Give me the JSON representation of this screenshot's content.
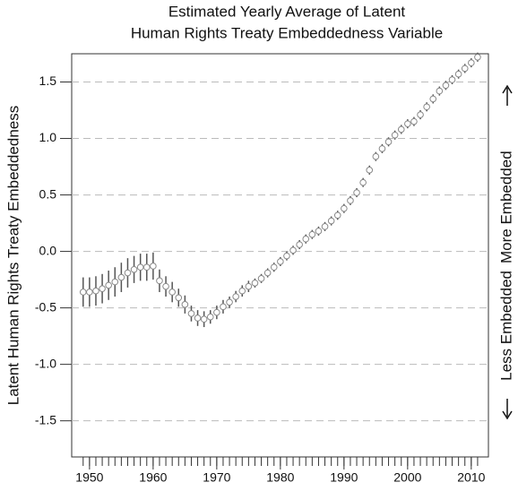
{
  "chart_data": {
    "type": "scatter",
    "title": [
      "Estimated Yearly Average of Latent",
      "Human Rights Treaty Embeddedness Variable"
    ],
    "y_label": "Latent Human Rights Treaty Embeddedness",
    "annotations": [
      "Less Embedded",
      "More Embedded"
    ],
    "x": [
      1949,
      1950,
      1951,
      1952,
      1953,
      1954,
      1955,
      1956,
      1957,
      1958,
      1959,
      1960,
      1961,
      1962,
      1963,
      1964,
      1965,
      1966,
      1967,
      1968,
      1969,
      1970,
      1971,
      1972,
      1973,
      1974,
      1975,
      1976,
      1977,
      1978,
      1979,
      1980,
      1981,
      1982,
      1983,
      1984,
      1985,
      1986,
      1987,
      1988,
      1989,
      1990,
      1991,
      1992,
      1993,
      1994,
      1995,
      1996,
      1997,
      1998,
      1999,
      2000,
      2001,
      2002,
      2003,
      2004,
      2005,
      2006,
      2007,
      2008,
      2009,
      2010,
      2011
    ],
    "values": [
      -0.36,
      -0.36,
      -0.35,
      -0.33,
      -0.3,
      -0.27,
      -0.23,
      -0.19,
      -0.16,
      -0.14,
      -0.14,
      -0.13,
      -0.26,
      -0.31,
      -0.36,
      -0.41,
      -0.47,
      -0.55,
      -0.59,
      -0.6,
      -0.58,
      -0.54,
      -0.49,
      -0.45,
      -0.4,
      -0.35,
      -0.31,
      -0.28,
      -0.24,
      -0.19,
      -0.14,
      -0.09,
      -0.04,
      0.01,
      0.06,
      0.11,
      0.15,
      0.18,
      0.22,
      0.27,
      0.32,
      0.38,
      0.45,
      0.52,
      0.61,
      0.72,
      0.84,
      0.91,
      0.97,
      1.03,
      1.08,
      1.13,
      1.15,
      1.21,
      1.28,
      1.35,
      1.42,
      1.47,
      1.52,
      1.57,
      1.62,
      1.67,
      1.72
    ],
    "errors": [
      0.13,
      0.13,
      0.13,
      0.13,
      0.13,
      0.13,
      0.13,
      0.13,
      0.12,
      0.12,
      0.12,
      0.12,
      0.1,
      0.09,
      0.09,
      0.08,
      0.08,
      0.07,
      0.07,
      0.07,
      0.06,
      0.06,
      0.06,
      0.05,
      0.05,
      0.05,
      0.05,
      0.04,
      0.04,
      0.04,
      0.04,
      0.04,
      0.04,
      0.04,
      0.04,
      0.04,
      0.04,
      0.04,
      0.04,
      0.04,
      0.04,
      0.04,
      0.04,
      0.04,
      0.04,
      0.04,
      0.04,
      0.04,
      0.04,
      0.04,
      0.04,
      0.04,
      0.04,
      0.04,
      0.04,
      0.04,
      0.04,
      0.04,
      0.04,
      0.04,
      0.04,
      0.04,
      0.04
    ],
    "xlim": [
      1947.2,
      2012.7
    ],
    "ylim": [
      -1.82,
      1.75
    ],
    "xticks": [
      1950,
      1960,
      1970,
      1980,
      1990,
      2000,
      2010
    ],
    "yticks": [
      {
        "value": -1.5,
        "label": "-1.5"
      },
      {
        "value": -1.0,
        "label": "-1.0"
      },
      -0.5,
      {
        "value": 0,
        "label": "0.0"
      },
      0.5,
      {
        "value": 1.0,
        "label": "1.0"
      },
      1.5
    ],
    "grid": true,
    "color": "#555555"
  }
}
